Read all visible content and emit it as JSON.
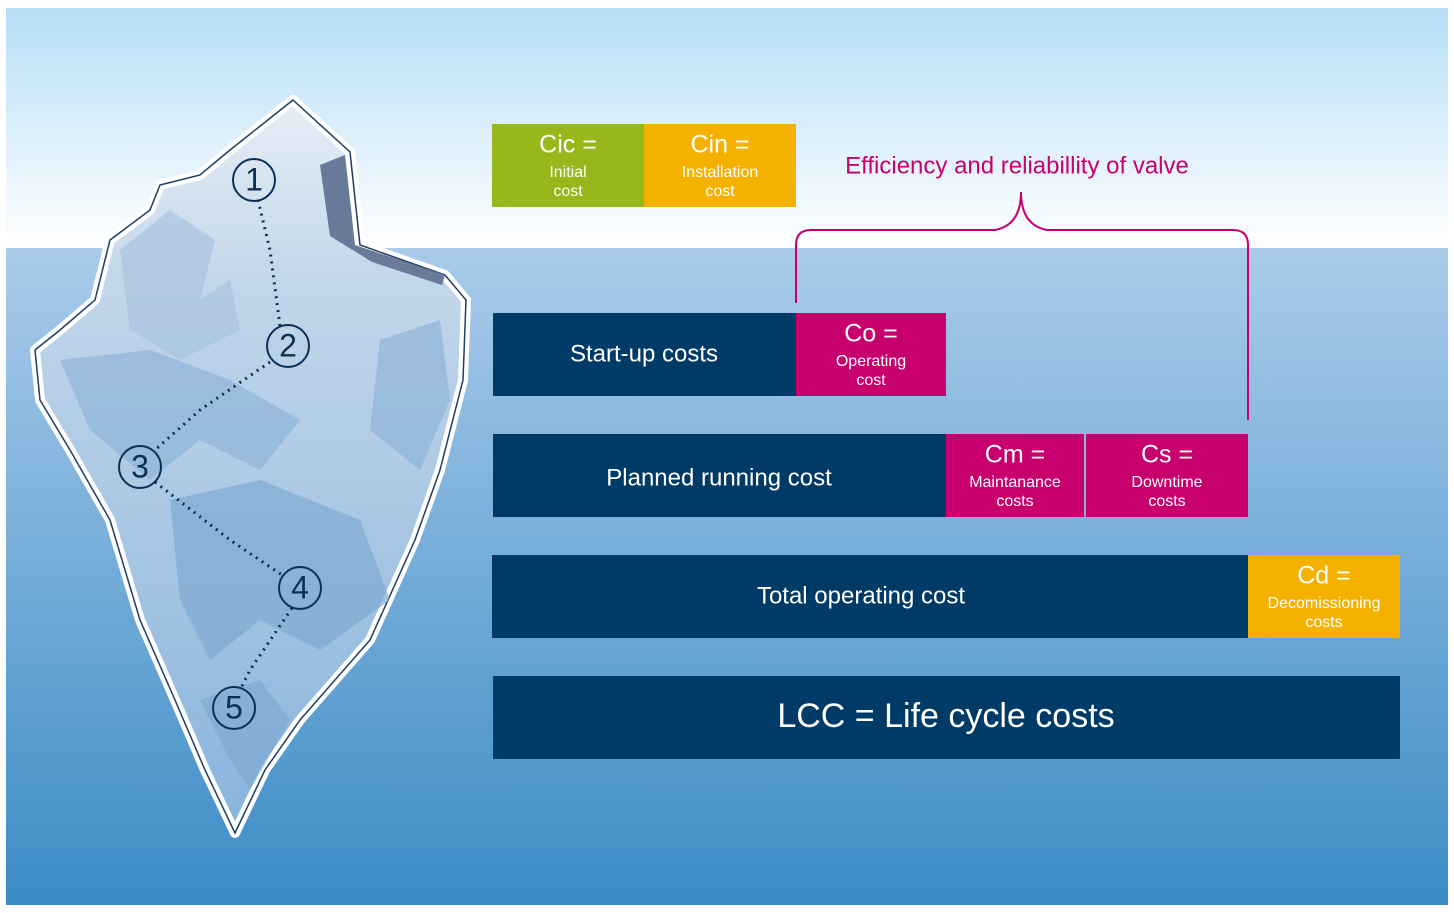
{
  "bracket_label": "Efficiency and reliabillity of valve",
  "steps": [
    "1",
    "2",
    "3",
    "4",
    "5"
  ],
  "cost_boxes": [
    {
      "symbol": "Cic =",
      "lines": [
        "Initial",
        "cost"
      ]
    },
    {
      "symbol": "Cin =",
      "lines": [
        "Installation",
        "cost"
      ]
    },
    {
      "symbol": "Co =",
      "lines": [
        "Operating",
        "cost"
      ]
    },
    {
      "symbol": "Cm =",
      "lines": [
        "Maintanance",
        "costs"
      ]
    },
    {
      "symbol": "Cs =",
      "lines": [
        "Downtime",
        "costs"
      ]
    },
    {
      "symbol": "Cd =",
      "lines": [
        "Decomissioning",
        "costs"
      ]
    }
  ],
  "bars": [
    "Start-up costs",
    "Planned running cost",
    "Total operating cost",
    "LCC = Life cycle costs"
  ]
}
